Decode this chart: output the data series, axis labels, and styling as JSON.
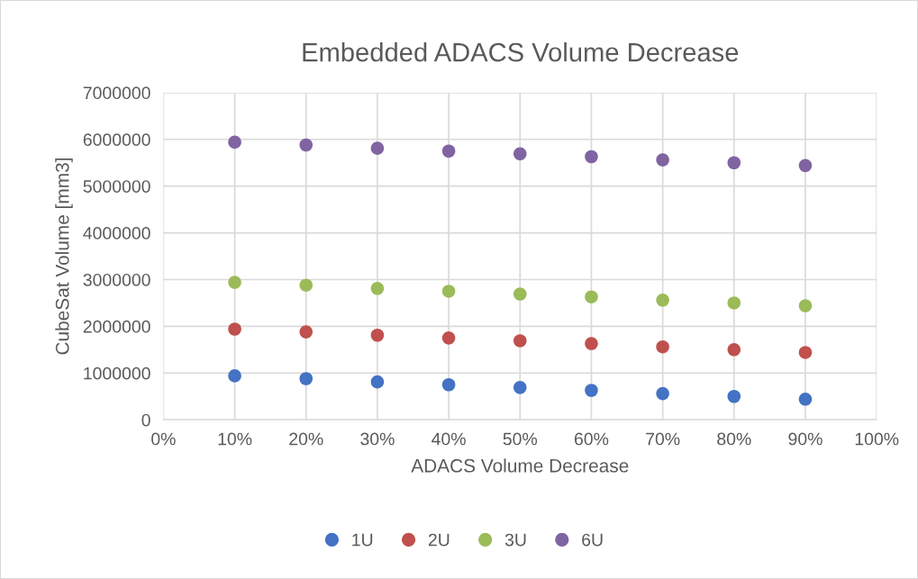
{
  "chart_data": {
    "type": "scatter",
    "title": "Embedded ADACS Volume Decrease",
    "xlabel": "ADACS Volume Decrease",
    "ylabel": "CubeSat Volume [mm3]",
    "x": [
      10,
      20,
      30,
      40,
      50,
      60,
      70,
      80,
      90
    ],
    "series": [
      {
        "name": "1U",
        "color": "#4472c4",
        "values": [
          940000,
          880000,
          810000,
          750000,
          690000,
          630000,
          560000,
          500000,
          440000
        ]
      },
      {
        "name": "2U",
        "color": "#c0504d",
        "values": [
          1940000,
          1880000,
          1810000,
          1750000,
          1690000,
          1630000,
          1560000,
          1500000,
          1440000
        ]
      },
      {
        "name": "3U",
        "color": "#9bbb59",
        "values": [
          2940000,
          2880000,
          2810000,
          2750000,
          2690000,
          2630000,
          2560000,
          2500000,
          2440000
        ]
      },
      {
        "name": "6U",
        "color": "#8064a2",
        "values": [
          5940000,
          5880000,
          5810000,
          5750000,
          5690000,
          5630000,
          5560000,
          5500000,
          5440000
        ]
      }
    ],
    "xlim": [
      0,
      100
    ],
    "xticks": [
      {
        "value": 0,
        "label": "0%"
      },
      {
        "value": 10,
        "label": "10%"
      },
      {
        "value": 20,
        "label": "20%"
      },
      {
        "value": 30,
        "label": "30%"
      },
      {
        "value": 40,
        "label": "40%"
      },
      {
        "value": 50,
        "label": "50%"
      },
      {
        "value": 60,
        "label": "60%"
      },
      {
        "value": 70,
        "label": "70%"
      },
      {
        "value": 80,
        "label": "80%"
      },
      {
        "value": 90,
        "label": "90%"
      },
      {
        "value": 100,
        "label": "100%"
      }
    ],
    "ylim": [
      0,
      7000000
    ],
    "yticks": [
      0,
      1000000,
      2000000,
      3000000,
      4000000,
      5000000,
      6000000,
      7000000
    ],
    "grid": true,
    "legend": "bottom",
    "marker": "circle"
  }
}
